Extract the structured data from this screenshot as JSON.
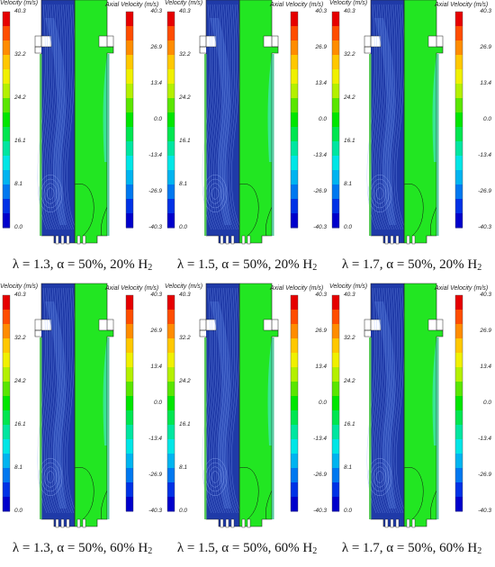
{
  "left_colorbar": {
    "title": "Velocity (m/s)",
    "ticks": [
      "40.3",
      "32.2",
      "24.2",
      "16.1",
      "8.1",
      "0.0"
    ]
  },
  "right_colorbar": {
    "title": "Axial Velocity (m/s)",
    "ticks": [
      "40.3",
      "26.9",
      "13.4",
      "0.0",
      "-13.4",
      "-26.9",
      "-40.3"
    ]
  },
  "panels": [
    {
      "lambda": "1.3",
      "alpha": "50%",
      "h2": "20%"
    },
    {
      "lambda": "1.5",
      "alpha": "50%",
      "h2": "20%"
    },
    {
      "lambda": "1.7",
      "alpha": "50%",
      "h2": "20%"
    },
    {
      "lambda": "1.3",
      "alpha": "50%",
      "h2": "60%"
    },
    {
      "lambda": "1.5",
      "alpha": "50%",
      "h2": "60%"
    },
    {
      "lambda": "1.7",
      "alpha": "50%",
      "h2": "60%"
    }
  ],
  "caption_parts": {
    "lambda_symbol": "λ",
    "alpha_symbol": "α",
    "h_symbol": "H",
    "h_subscript": "2"
  }
}
